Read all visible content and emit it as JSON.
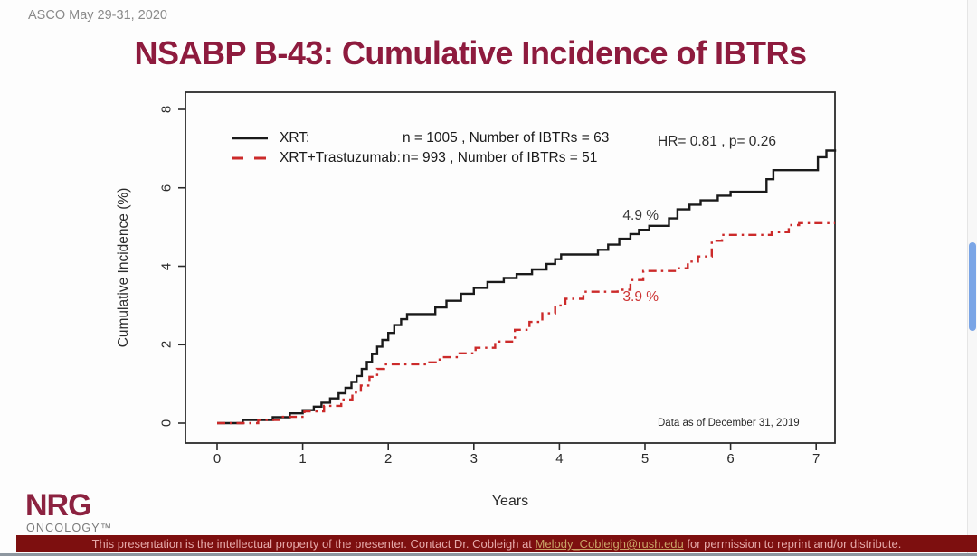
{
  "header": {
    "conference": "ASCO May 29-31, 2020",
    "title": "NSABP B-43: Cumulative Incidence of IBTRs"
  },
  "chart_data": {
    "type": "line",
    "subtype": "cumulative-incidence-step",
    "xlabel": "Years",
    "ylabel": "Cumulative Incidence (%)",
    "xlim": [
      0,
      7.22
    ],
    "ylim": [
      0,
      8
    ],
    "xticks": [
      0,
      1,
      2,
      3,
      4,
      5,
      6,
      7
    ],
    "yticks": [
      0,
      2,
      4,
      6,
      8
    ],
    "grid": false,
    "legend_position": "top-left-inside",
    "hr": "0.81",
    "p": "0.26",
    "stats_label": "HR= 0.81 ,  p= 0.26",
    "note": "Data as of December 31, 2019",
    "series": [
      {
        "name": "XRT",
        "legend_label": "XRT:",
        "legend_detail": "n = 1005 , Number of IBTRs = 63",
        "n": 1005,
        "ibtrs": 63,
        "final_pct": "6.9",
        "color": "#1a1a1a",
        "dash": "solid",
        "points": [
          [
            0.0,
            0.0
          ],
          [
            0.3,
            0.08
          ],
          [
            0.65,
            0.15
          ],
          [
            0.85,
            0.25
          ],
          [
            1.0,
            0.33
          ],
          [
            1.13,
            0.42
          ],
          [
            1.22,
            0.52
          ],
          [
            1.32,
            0.63
          ],
          [
            1.42,
            0.76
          ],
          [
            1.5,
            0.9
          ],
          [
            1.57,
            1.05
          ],
          [
            1.63,
            1.2
          ],
          [
            1.69,
            1.38
          ],
          [
            1.75,
            1.56
          ],
          [
            1.81,
            1.76
          ],
          [
            1.87,
            1.95
          ],
          [
            1.93,
            2.12
          ],
          [
            2.0,
            2.3
          ],
          [
            2.07,
            2.5
          ],
          [
            2.15,
            2.65
          ],
          [
            2.22,
            2.78
          ],
          [
            2.55,
            2.95
          ],
          [
            2.68,
            3.12
          ],
          [
            2.85,
            3.3
          ],
          [
            3.0,
            3.45
          ],
          [
            3.16,
            3.6
          ],
          [
            3.35,
            3.7
          ],
          [
            3.5,
            3.8
          ],
          [
            3.68,
            3.92
          ],
          [
            3.85,
            4.06
          ],
          [
            3.95,
            4.18
          ],
          [
            4.02,
            4.3
          ],
          [
            4.45,
            4.42
          ],
          [
            4.57,
            4.55
          ],
          [
            4.7,
            4.7
          ],
          [
            4.83,
            4.82
          ],
          [
            4.93,
            4.93
          ],
          [
            5.05,
            5.03
          ],
          [
            5.28,
            5.22
          ],
          [
            5.38,
            5.45
          ],
          [
            5.52,
            5.57
          ],
          [
            5.65,
            5.68
          ],
          [
            5.85,
            5.8
          ],
          [
            6.0,
            5.9
          ],
          [
            6.42,
            6.22
          ],
          [
            6.5,
            6.45
          ],
          [
            7.02,
            6.78
          ],
          [
            7.12,
            6.95
          ],
          [
            7.22,
            6.98
          ]
        ]
      },
      {
        "name": "XRT+Trastuzumab",
        "legend_label": "XRT+Trastuzumab:",
        "legend_detail": "n= 993 , Number of IBTRs = 51",
        "n": 993,
        "ibtrs": 51,
        "final_pct": "5.1",
        "color": "#cc2a2a",
        "dash": "dashdot",
        "points": [
          [
            0.0,
            0.0
          ],
          [
            0.48,
            0.08
          ],
          [
            0.75,
            0.16
          ],
          [
            1.02,
            0.3
          ],
          [
            1.25,
            0.44
          ],
          [
            1.45,
            0.6
          ],
          [
            1.58,
            0.78
          ],
          [
            1.68,
            0.96
          ],
          [
            1.78,
            1.18
          ],
          [
            1.87,
            1.38
          ],
          [
            1.95,
            1.5
          ],
          [
            2.48,
            1.55
          ],
          [
            2.6,
            1.68
          ],
          [
            2.8,
            1.78
          ],
          [
            3.02,
            1.92
          ],
          [
            3.25,
            2.08
          ],
          [
            3.48,
            2.38
          ],
          [
            3.65,
            2.58
          ],
          [
            3.8,
            2.8
          ],
          [
            3.95,
            3.0
          ],
          [
            4.07,
            3.17
          ],
          [
            4.28,
            3.35
          ],
          [
            4.68,
            3.4
          ],
          [
            4.83,
            3.65
          ],
          [
            4.98,
            3.88
          ],
          [
            5.38,
            3.95
          ],
          [
            5.5,
            4.12
          ],
          [
            5.62,
            4.25
          ],
          [
            5.78,
            4.65
          ],
          [
            5.9,
            4.8
          ],
          [
            6.48,
            4.87
          ],
          [
            6.68,
            5.05
          ],
          [
            6.8,
            5.1
          ],
          [
            7.22,
            5.1
          ]
        ]
      }
    ],
    "annotations": [
      {
        "text": "4.9 %",
        "x": 4.95,
        "y": 5.29,
        "color": "#3a3a3a"
      },
      {
        "text": "3.9 %",
        "x": 4.95,
        "y": 3.2,
        "color": "#cc3333"
      }
    ]
  },
  "footer": {
    "logo_main": "NRG",
    "logo_sub": "ONCOLOGY™",
    "bar_text_before": "This presentation is the intellectual property of the presenter. Contact Dr. Cobleigh at ",
    "bar_link": "Melody_Cobleigh@rush.edu",
    "bar_text_after": " for permission to reprint and/or distribute."
  },
  "colors": {
    "title": "#8e1b3e",
    "header_gray": "#8a8a8a",
    "axis": "#2b2b2b",
    "footer_bar_bg": "#7d0f0f",
    "footer_bar_text": "#e5a9a9",
    "footer_link": "#c9a366",
    "logo_main": "#8c2240",
    "logo_sub": "#7a7a7a",
    "scrollbar_thumb": "#7aa5e6"
  }
}
